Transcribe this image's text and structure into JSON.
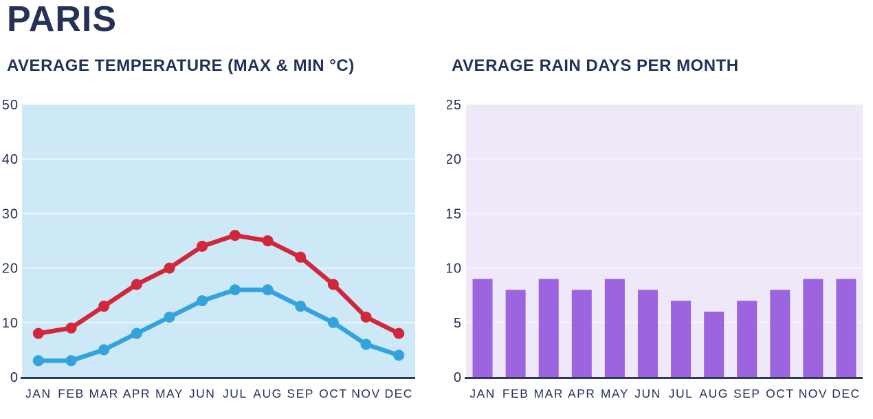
{
  "page": {
    "title": "PARIS"
  },
  "colors": {
    "navy": "#243158",
    "temp_plot_bg": "#cde9f8",
    "temp_gridline": "#e9f6fd",
    "max_line": "#d2263b",
    "min_line": "#32a3dd",
    "rain_plot_bg": "#eee8f8",
    "rain_gridline": "#f8f4fc",
    "bar_fill": "#9c64de",
    "axis_line": "#2c3a5c"
  },
  "chart_data": [
    {
      "id": "temperature",
      "type": "line",
      "title": "AVERAGE TEMPERATURE (MAX & MIN °C)",
      "categories": [
        "JAN",
        "FEB",
        "MAR",
        "APR",
        "MAY",
        "JUN",
        "JUL",
        "AUG",
        "SEP",
        "OCT",
        "NOV",
        "DEC"
      ],
      "series": [
        {
          "name": "max",
          "color": "#d2263b",
          "values": [
            8,
            9,
            13,
            17,
            20,
            24,
            26,
            25,
            22,
            17,
            11,
            8
          ]
        },
        {
          "name": "min",
          "color": "#32a3dd",
          "values": [
            3,
            3,
            5,
            8,
            11,
            14,
            16,
            16,
            13,
            10,
            6,
            4
          ]
        }
      ],
      "xlabel": "",
      "ylabel": "",
      "ylim": [
        0,
        50
      ],
      "yticks": [
        0,
        10,
        20,
        30,
        40,
        50
      ],
      "grid": true,
      "legend_position": "none"
    },
    {
      "id": "rain",
      "type": "bar",
      "title": "AVERAGE RAIN DAYS PER MONTH",
      "categories": [
        "JAN",
        "FEB",
        "MAR",
        "APR",
        "MAY",
        "JUN",
        "JUL",
        "AUG",
        "SEP",
        "OCT",
        "NOV",
        "DEC"
      ],
      "values": [
        9,
        8,
        9,
        8,
        9,
        8,
        7,
        6,
        7,
        8,
        9,
        9
      ],
      "xlabel": "",
      "ylabel": "",
      "ylim": [
        0,
        25
      ],
      "yticks": [
        0,
        5,
        10,
        15,
        20,
        25
      ],
      "grid": true,
      "legend_position": "none"
    }
  ]
}
